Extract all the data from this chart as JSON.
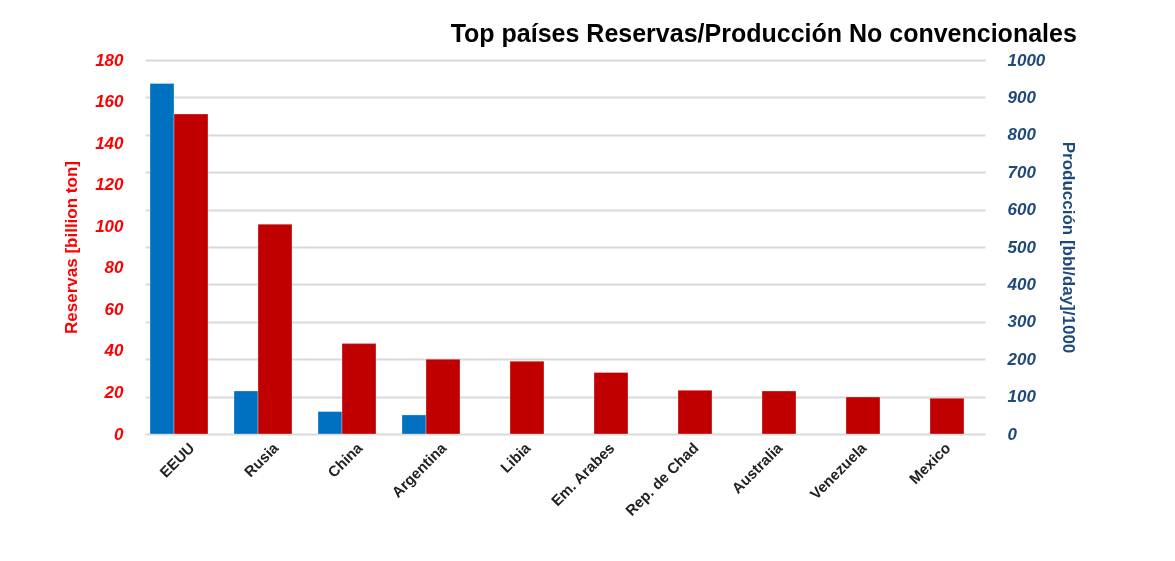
{
  "chart_data": {
    "type": "bar",
    "title": "Top países Reservas/Producción No convencionales",
    "ylabel": "Reservas [billion ton]",
    "y2label": "Producción [bbl/day]/1000",
    "categories": [
      "EEUU",
      "Rusia",
      "China",
      "Argentina",
      "Libia",
      "Em. Arabes",
      "Rep. de Chad",
      "Australia",
      "Venezuela",
      "Mexico"
    ],
    "series": [
      {
        "color": "#0070c0",
        "axis": "y2",
        "values": [
          937,
          115,
          60,
          51,
          null,
          null,
          null,
          null,
          null,
          null
        ]
      },
      {
        "color": "#c00000",
        "values": [
          154,
          101,
          43.5,
          36,
          35,
          29.6,
          21,
          20.7,
          17.8,
          17.2
        ]
      }
    ],
    "ylim": [
      0,
      180
    ],
    "yticks": [
      0,
      20,
      40,
      60,
      80,
      100,
      120,
      140,
      160,
      180
    ],
    "y2lim": [
      0,
      1000
    ],
    "y2ticks": [
      0,
      100,
      200,
      300,
      400,
      500,
      600,
      700,
      800,
      900,
      1000
    ],
    "grid": "y2"
  }
}
